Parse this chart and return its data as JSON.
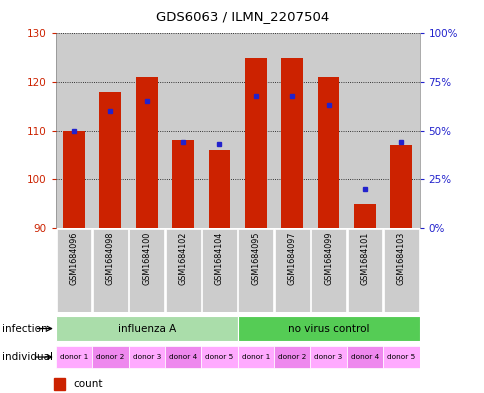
{
  "title": "GDS6063 / ILMN_2207504",
  "samples": [
    "GSM1684096",
    "GSM1684098",
    "GSM1684100",
    "GSM1684102",
    "GSM1684104",
    "GSM1684095",
    "GSM1684097",
    "GSM1684099",
    "GSM1684101",
    "GSM1684103"
  ],
  "counts": [
    110,
    118,
    121,
    108,
    106,
    125,
    125,
    121,
    95,
    107
  ],
  "percentiles": [
    50,
    60,
    65,
    44,
    43,
    68,
    68,
    63,
    20,
    44
  ],
  "ylim_left": [
    90,
    130
  ],
  "ylim_right": [
    0,
    100
  ],
  "yticks_left": [
    90,
    100,
    110,
    120,
    130
  ],
  "yticks_right": [
    0,
    25,
    50,
    75,
    100
  ],
  "ytick_labels_right": [
    "0%",
    "25%",
    "50%",
    "75%",
    "100%"
  ],
  "individual_labels": [
    "donor 1",
    "donor 2",
    "donor 3",
    "donor 4",
    "donor 5",
    "donor 1",
    "donor 2",
    "donor 3",
    "donor 4",
    "donor 5"
  ],
  "bar_color": "#CC2200",
  "dot_color": "#2222CC",
  "bg_color": "#FFFFFF",
  "label_color_left": "#CC2200",
  "label_color_right": "#2222CC",
  "infection_color_light": "#AADDAA",
  "infection_color_dark": "#55CC55",
  "individual_colors": [
    "#FFAAFF",
    "#EE88EE",
    "#FFAAFF",
    "#EE88EE",
    "#FFAAFF",
    "#FFAAFF",
    "#EE88EE",
    "#FFAAFF",
    "#EE88EE",
    "#FFAAFF"
  ],
  "col_bg_color": "#CCCCCC"
}
